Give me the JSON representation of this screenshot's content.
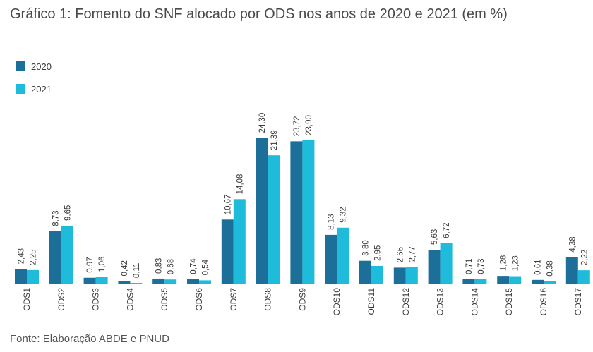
{
  "header": {
    "title": "Gráfico 1: Fomento do SNF alocado por ODS nos anos de 2020 e 2021 (em %)"
  },
  "footer": {
    "source": "Fonte: Elaboração ABDE e PNUD"
  },
  "colors": {
    "series_2020": "#1b6f99",
    "series_2021": "#1fbbda",
    "axis": "#bfbfbf"
  },
  "chart_data": {
    "type": "bar",
    "title": "Gráfico 1: Fomento do SNF alocado por ODS nos anos de 2020 e 2021 (em %)",
    "xlabel": "",
    "ylabel": "",
    "ylim": [
      0,
      26
    ],
    "grid": false,
    "legend": "top-left",
    "categories": [
      "ODS1",
      "ODS2",
      "ODS3",
      "ODS4",
      "ODS5",
      "ODS6",
      "ODS7",
      "ODS8",
      "ODS9",
      "ODS10",
      "ODS11",
      "ODS12",
      "ODS13",
      "ODS14",
      "ODS15",
      "ODS16",
      "ODS17"
    ],
    "series": [
      {
        "name": "2020",
        "values": [
          2.43,
          8.73,
          0.97,
          0.42,
          0.83,
          0.74,
          10.67,
          24.3,
          23.72,
          8.13,
          3.8,
          2.66,
          5.63,
          0.71,
          1.28,
          0.61,
          4.38
        ],
        "labels": [
          "2,43",
          "8,73",
          "0,97",
          "0,42",
          "0,83",
          "0,74",
          "10,67",
          "24,30",
          "23,72",
          "8,13",
          "3,80",
          "2,66",
          "5,63",
          "0,71",
          "1,28",
          "0,61",
          "4,38"
        ]
      },
      {
        "name": "2021",
        "values": [
          2.25,
          9.65,
          1.06,
          0.11,
          0.68,
          0.54,
          14.08,
          21.39,
          23.9,
          9.32,
          2.95,
          2.77,
          6.72,
          0.73,
          1.23,
          0.38,
          2.22
        ],
        "labels": [
          "2,25",
          "9,65",
          "1,06",
          "0,11",
          "0,68",
          "0,54",
          "14,08",
          "21,39",
          "23,90",
          "9,32",
          "2,95",
          "2,77",
          "6,72",
          "0,73",
          "1,23",
          "0,38",
          "2,22"
        ]
      }
    ]
  }
}
